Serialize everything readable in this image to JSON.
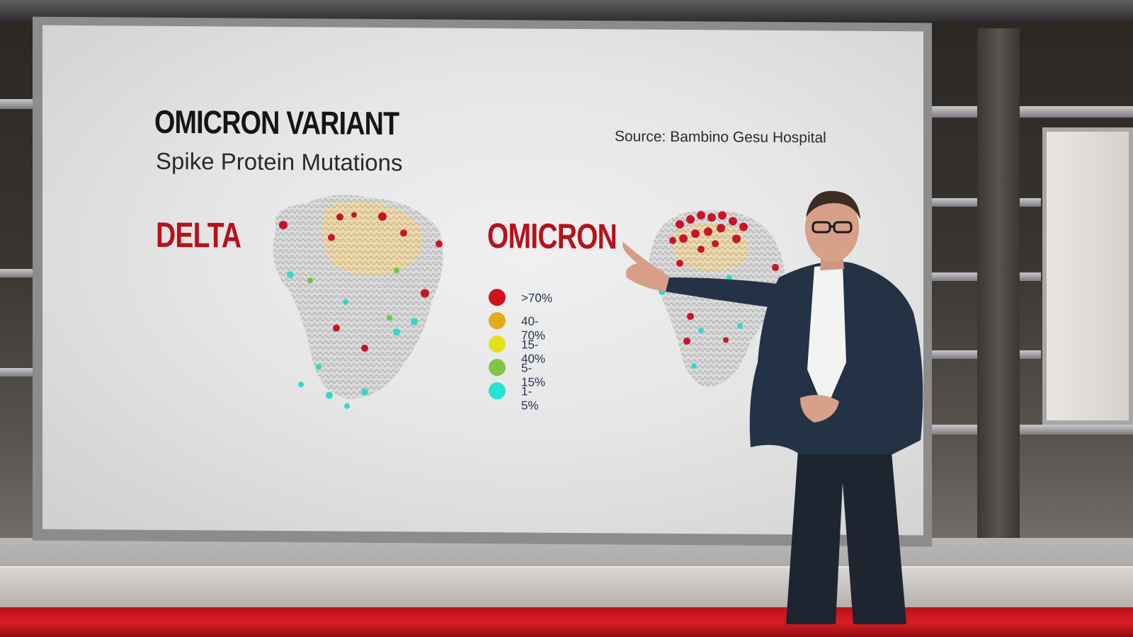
{
  "graphic": {
    "title": "OMICRON VARIANT",
    "subtitle": "Spike Protein Mutations",
    "source": "Source: Bambino Gesu Hospital",
    "left_label": "DELTA",
    "right_label": "OMICRON"
  },
  "legend": {
    "items": [
      {
        "label": ">70%",
        "color": "#d0121b"
      },
      {
        "label": "40-70%",
        "color": "#e3aa1a"
      },
      {
        "label": "15-40%",
        "color": "#e4e01e"
      },
      {
        "label": "5-15%",
        "color": "#7fc447"
      },
      {
        "label": "1-5%",
        "color": "#22e3d6"
      }
    ]
  },
  "colors": {
    "accent_red": "#b5121b",
    "studio_floor_red": "#d81e24"
  }
}
